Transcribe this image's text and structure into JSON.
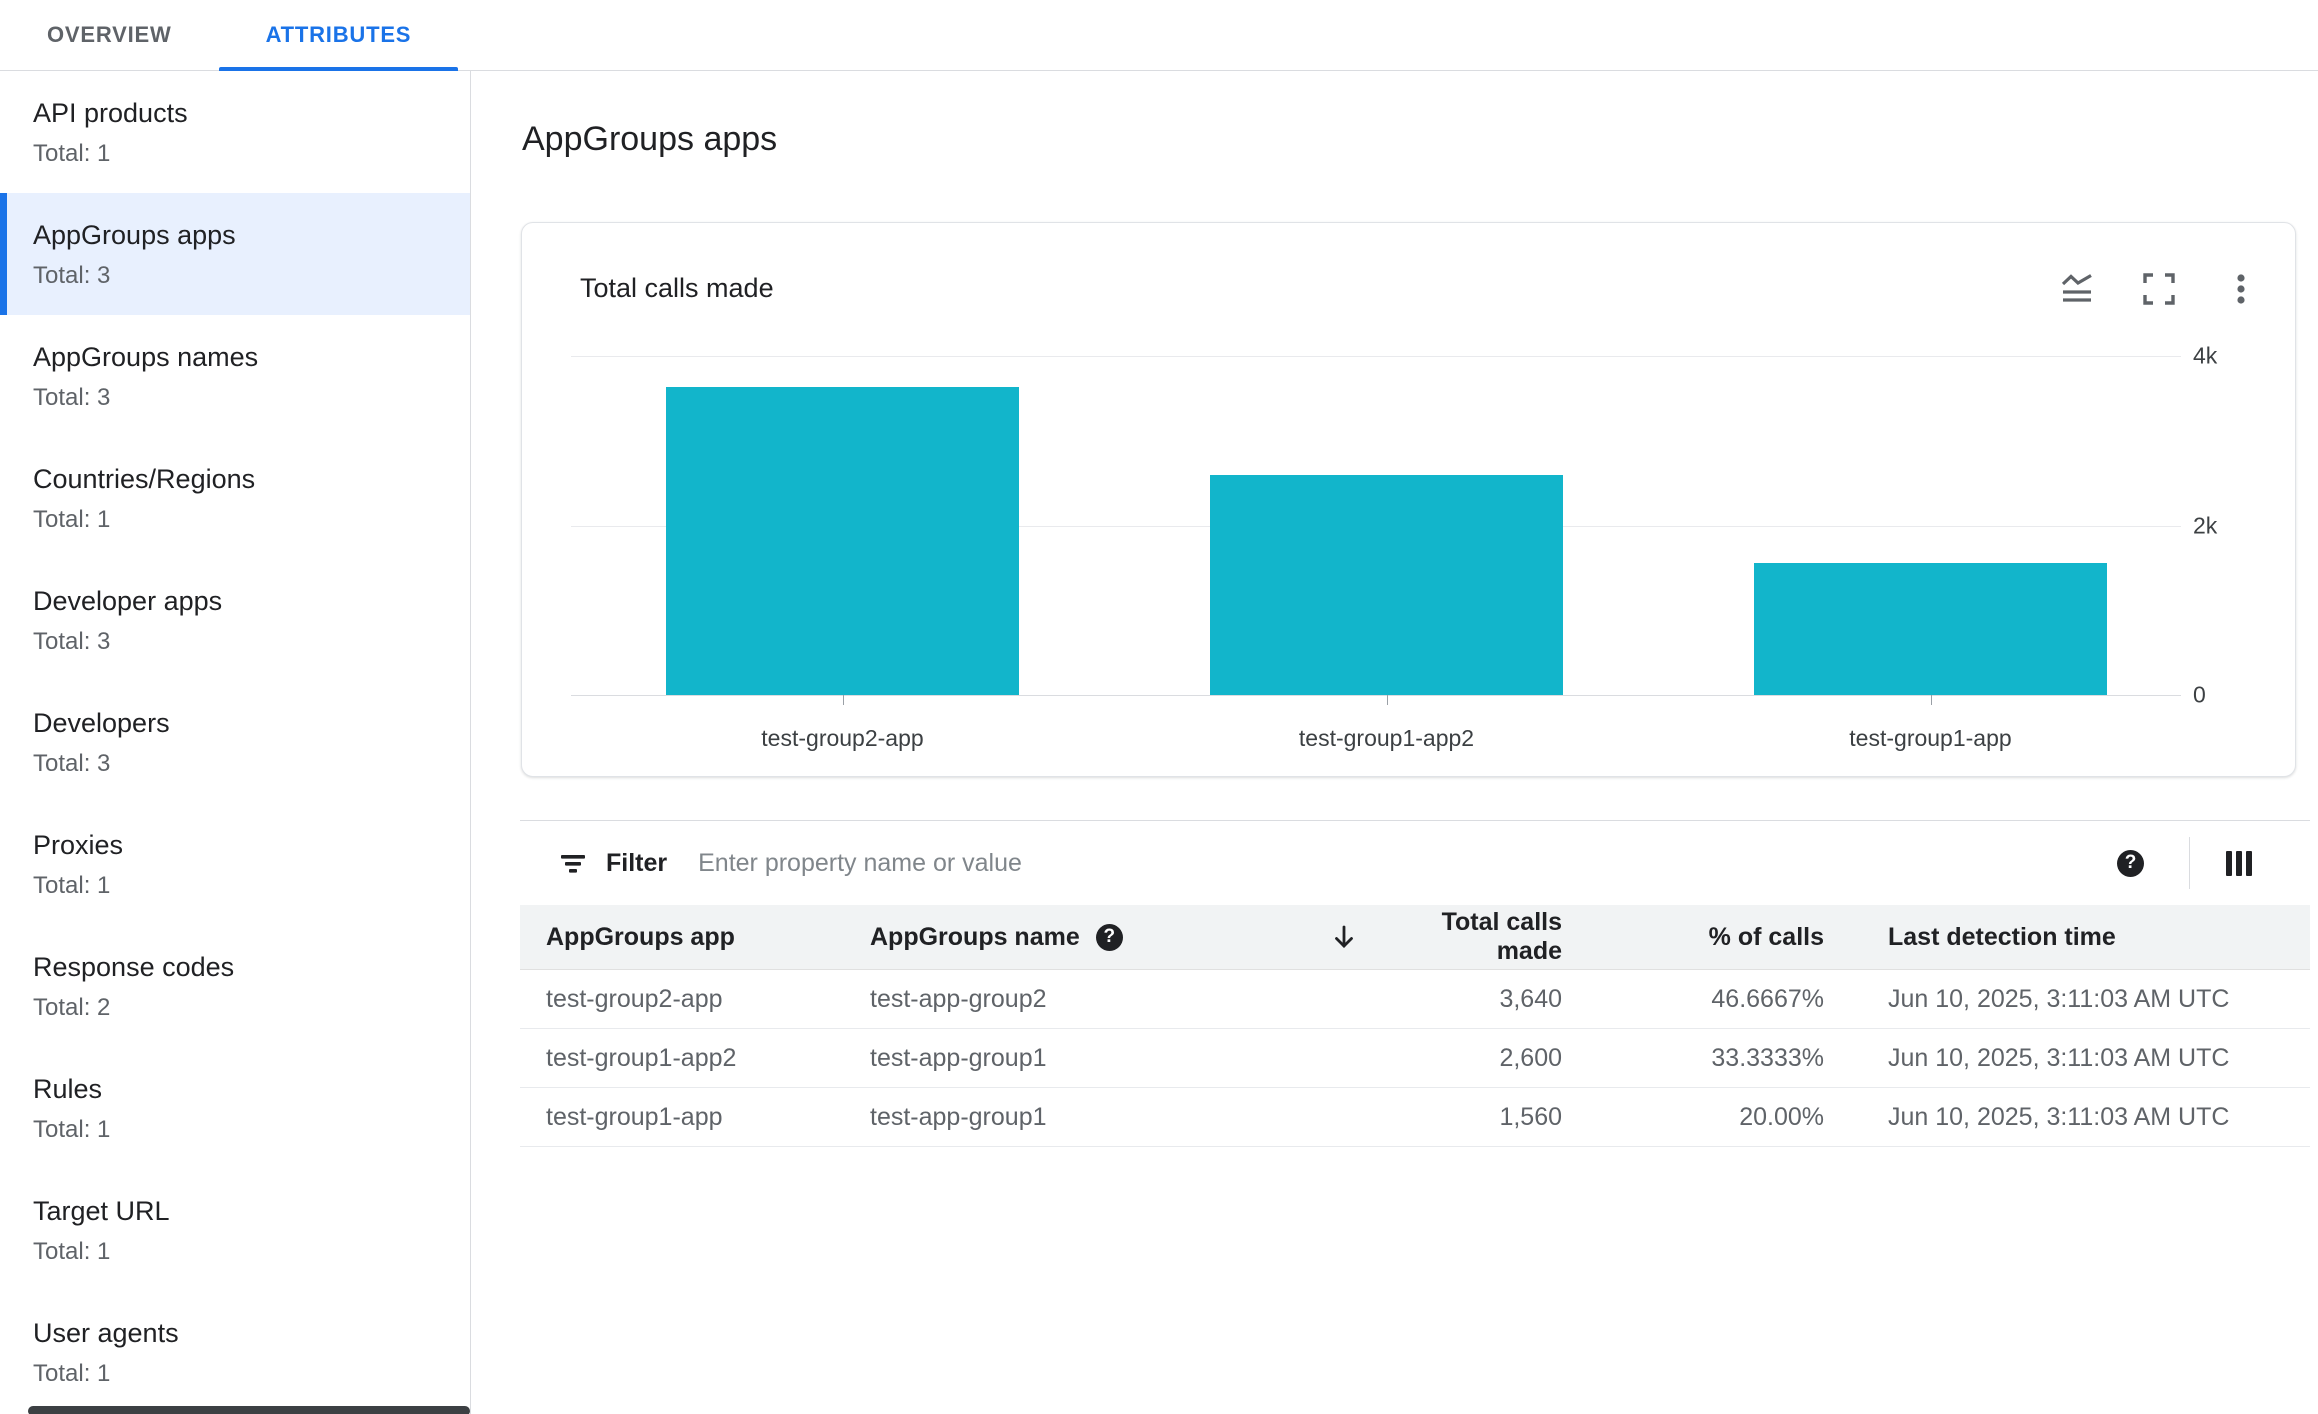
{
  "tabs": {
    "overview": "OVERVIEW",
    "attributes": "ATTRIBUTES"
  },
  "sidebar": {
    "items": [
      {
        "label": "API products",
        "total": "Total: 1",
        "selected": false
      },
      {
        "label": "AppGroups apps",
        "total": "Total: 3",
        "selected": true
      },
      {
        "label": "AppGroups names",
        "total": "Total: 3",
        "selected": false
      },
      {
        "label": "Countries/Regions",
        "total": "Total: 1",
        "selected": false
      },
      {
        "label": "Developer apps",
        "total": "Total: 3",
        "selected": false
      },
      {
        "label": "Developers",
        "total": "Total: 3",
        "selected": false
      },
      {
        "label": "Proxies",
        "total": "Total: 1",
        "selected": false
      },
      {
        "label": "Response codes",
        "total": "Total: 2",
        "selected": false
      },
      {
        "label": "Rules",
        "total": "Total: 1",
        "selected": false
      },
      {
        "label": "Target URL",
        "total": "Total: 1",
        "selected": false
      },
      {
        "label": "User agents",
        "total": "Total: 1",
        "selected": false
      }
    ]
  },
  "main": {
    "title": "AppGroups apps",
    "card": {
      "title": "Total calls made"
    },
    "chart_data": {
      "type": "bar",
      "title": "Total calls made",
      "categories": [
        "test-group2-app",
        "test-group1-app2",
        "test-group1-app"
      ],
      "values": [
        3640,
        2600,
        1560
      ],
      "ylim": [
        0,
        4000
      ],
      "yticks": [
        {
          "label": "4k",
          "value": 4000
        },
        {
          "label": "2k",
          "value": 2000
        },
        {
          "label": "0",
          "value": 0
        }
      ],
      "bar_color": "#12b5cb",
      "grid": true,
      "legend": false
    },
    "filter": {
      "label": "Filter",
      "placeholder": "Enter property name or value"
    },
    "table": {
      "columns": [
        {
          "label": "AppGroups app"
        },
        {
          "label": "AppGroups name",
          "help": true
        },
        {
          "label": "Total calls made",
          "sorted": "desc"
        },
        {
          "label": "% of calls"
        },
        {
          "label": "Last detection time"
        }
      ],
      "rows": [
        [
          "test-group2-app",
          "test-app-group2",
          "3,640",
          "46.6667%",
          "Jun 10, 2025, 3:11:03 AM UTC"
        ],
        [
          "test-group1-app2",
          "test-app-group1",
          "2,600",
          "33.3333%",
          "Jun 10, 2025, 3:11:03 AM UTC"
        ],
        [
          "test-group1-app",
          "test-app-group1",
          "1,560",
          "20.00%",
          "Jun 10, 2025, 3:11:03 AM UTC"
        ]
      ]
    }
  },
  "icons": {
    "help_glyph": "?"
  },
  "colors": {
    "accent_blue": "#1a73e8",
    "bar_teal": "#12b5cb",
    "selected_bg": "#e8f0fe"
  }
}
